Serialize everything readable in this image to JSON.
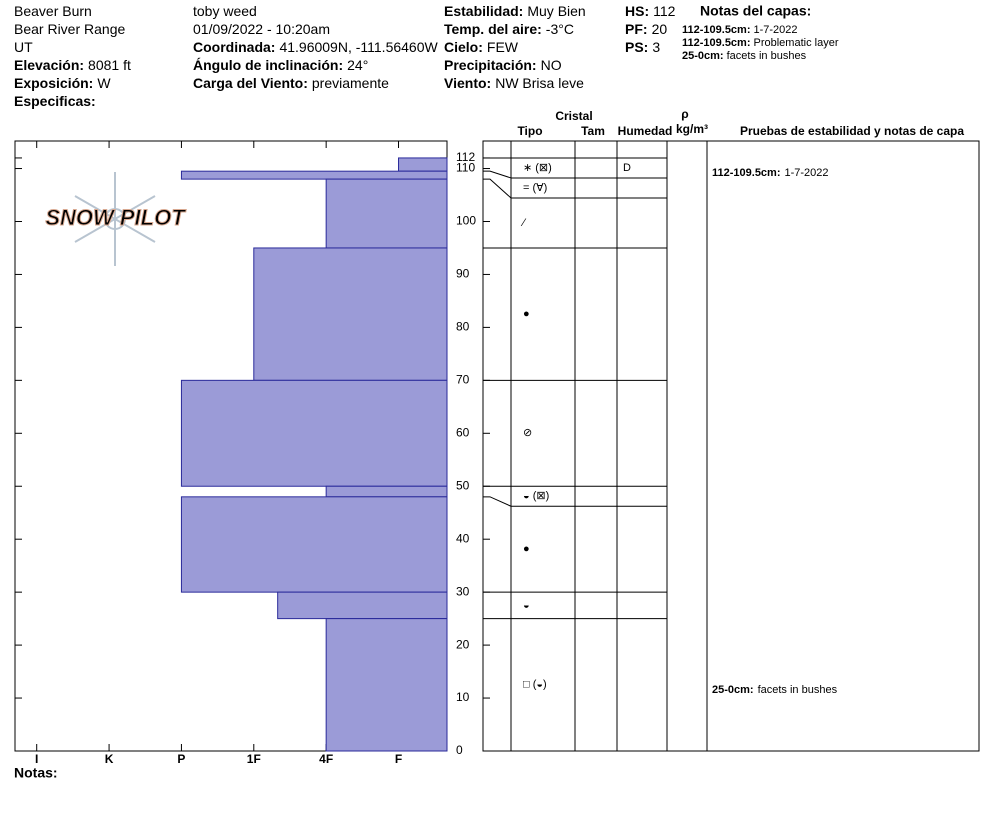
{
  "header": {
    "columns": [
      [
        {
          "value": "Beaver Burn"
        },
        {
          "value": "Bear River Range"
        },
        {
          "value": "UT"
        },
        {
          "label": "Elevación:",
          "value": "8081 ft"
        },
        {
          "label": "Exposición:",
          "value": "W"
        },
        {
          "label": "Especificas:"
        }
      ],
      [
        {
          "value": "toby weed"
        },
        {
          "value": "01/09/2022 - 10:20am"
        },
        {
          "label": "Coordinada:",
          "value": "41.96009N, -111.56460W"
        },
        {
          "label": "Ángulo de inclinación:",
          "value": "24°"
        },
        {
          "label": "Carga del Viento:",
          "value": "previamente"
        }
      ],
      [
        {
          "label": "Estabilidad:",
          "value": "Muy Bien"
        },
        {
          "label": "Temp. del aire:",
          "value": "-3°C"
        },
        {
          "label": "Cielo:",
          "value": "FEW"
        },
        {
          "label": "Precipitación:",
          "value": "NO"
        },
        {
          "label": "Viento:",
          "value": "NW Brisa leve"
        }
      ],
      [
        {
          "label": "HS:",
          "value": "112"
        },
        {
          "label": "PF:",
          "value": "20"
        },
        {
          "label": "PS:",
          "value": "3"
        }
      ]
    ],
    "layer_notes": {
      "title": "Notas del capas:",
      "items": [
        {
          "label": "112-109.5cm:",
          "value": "1-7-2022"
        },
        {
          "label": "112-109.5cm:",
          "value": "Problematic layer"
        },
        {
          "label": "25-0cm:",
          "value": "facets in bushes"
        }
      ]
    }
  },
  "logo": "SNOW PILOT",
  "chart_data": {
    "type": "snow-profile",
    "color": "#9b9bd7",
    "xlim": [
      6.3,
      0.33
    ],
    "xticks": [
      {
        "value": 6,
        "label": "I"
      },
      {
        "value": 5,
        "label": "K"
      },
      {
        "value": 4,
        "label": "P"
      },
      {
        "value": 3,
        "label": "1F"
      },
      {
        "value": 2,
        "label": "4F"
      },
      {
        "value": 1,
        "label": "F"
      }
    ],
    "ylim": [
      0,
      115.2
    ],
    "yticks": [
      0,
      10,
      20,
      30,
      40,
      50,
      60,
      70,
      80,
      90,
      100,
      110,
      112
    ],
    "layers": [
      {
        "top": 112,
        "bottom": 109.5,
        "hardness": 1,
        "grain": "∗ (⊠)",
        "moisture": "D",
        "note": {
          "label": "112-109.5cm:",
          "value": "1-7-2022"
        }
      },
      {
        "top": 109.5,
        "bottom": 108,
        "hardness": 4,
        "grain": "= (∀)"
      },
      {
        "top": 108,
        "bottom": 95,
        "hardness": 2,
        "grain": "⁄"
      },
      {
        "top": 95,
        "bottom": 70,
        "hardness": 3,
        "grain": "●"
      },
      {
        "top": 70,
        "bottom": 50,
        "hardness": 4,
        "grain": "⊘"
      },
      {
        "top": 50,
        "bottom": 48,
        "hardness": 2,
        "grain": "◒ (⊠)"
      },
      {
        "top": 48,
        "bottom": 30,
        "hardness": 4,
        "grain": "●"
      },
      {
        "top": 30,
        "bottom": 25,
        "hardness": 2.67,
        "grain": "◒"
      },
      {
        "top": 25,
        "bottom": 0,
        "hardness": 2,
        "grain": "□ (◒)",
        "note": {
          "label": "25-0cm:",
          "value": "facets in bushes"
        }
      }
    ],
    "table_headers": {
      "crystal": "Cristal",
      "type": "Tipo",
      "size": "Tam",
      "moisture": "Humedad",
      "rho": "ρ",
      "density_unit": "kg/m³",
      "tests": "Pruebas de estabilidad y notas de capa"
    },
    "footer": "Notas:"
  }
}
